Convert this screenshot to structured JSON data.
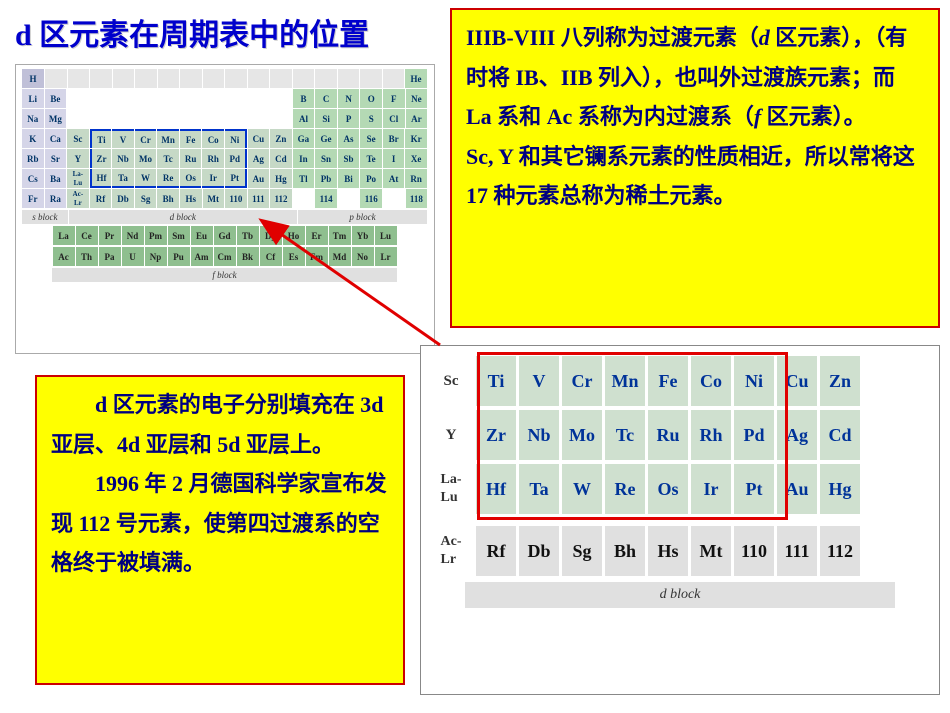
{
  "title": "d 区元素在周期表中的位置",
  "box_top_right": "IIIB-VIII 八列称为过渡元素（<span class=\"ital\">d</span> 区元素），（有时将 IB、IIB 列入），也叫外过渡族元素；而 La 系和 Ac 系称为内过渡系（<span class=\"ital\">f</span> 区元素）。<br>Sc, Y 和其它镧系元素的性质相近，所以常将这 17 种元素总称为稀土元素。",
  "box_bottom_left_p1": "　　d 区元素的电子分别填充在 3d 亚层、4d 亚层和 5d 亚层上。",
  "box_bottom_left_p2": "　　1996 年 2 月德国科学家宣布发现 112 号元素，使第四过渡系的空格终于被填满。",
  "colors": {
    "title_color": "#0000cc",
    "box_bg": "#ffff00",
    "box_border": "#cc0000",
    "text_color": "#000080",
    "d_block_border": "#0033cc",
    "big_red_border": "#e00000",
    "arrow_color": "#e00000",
    "s_block": "#d5d5e8",
    "p_block": "#b4d9b4",
    "d_block": "#c6d9c6",
    "f_block": "#8fbf8f"
  },
  "blocks": {
    "s": "s block",
    "d": "d block",
    "p": "p block",
    "f": "f block"
  },
  "small_table": {
    "r1": [
      "H",
      "",
      "",
      "",
      "",
      "",
      "",
      "",
      "",
      "",
      "",
      "",
      "",
      "",
      "",
      "",
      "",
      "He"
    ],
    "r2": [
      "Li",
      "Be",
      "",
      "",
      "",
      "",
      "",
      "",
      "",
      "",
      "",
      "",
      "B",
      "C",
      "N",
      "O",
      "F",
      "Ne"
    ],
    "r3": [
      "Na",
      "Mg",
      "",
      "",
      "",
      "",
      "",
      "",
      "",
      "",
      "",
      "",
      "Al",
      "Si",
      "P",
      "S",
      "Cl",
      "Ar"
    ],
    "r4": [
      "K",
      "Ca",
      "Sc",
      "Ti",
      "V",
      "Cr",
      "Mn",
      "Fe",
      "Co",
      "Ni",
      "Cu",
      "Zn",
      "Ga",
      "Ge",
      "As",
      "Se",
      "Br",
      "Kr"
    ],
    "r5": [
      "Rb",
      "Sr",
      "Y",
      "Zr",
      "Nb",
      "Mo",
      "Tc",
      "Ru",
      "Rh",
      "Pd",
      "Ag",
      "Cd",
      "In",
      "Sn",
      "Sb",
      "Te",
      "I",
      "Xe"
    ],
    "r6": [
      "Cs",
      "Ba",
      "La-Lu",
      "Hf",
      "Ta",
      "W",
      "Re",
      "Os",
      "Ir",
      "Pt",
      "Au",
      "Hg",
      "Tl",
      "Pb",
      "Bi",
      "Po",
      "At",
      "Rn"
    ],
    "r7": [
      "Fr",
      "Ra",
      "Ac-Lr",
      "Rf",
      "Db",
      "Sg",
      "Bh",
      "Hs",
      "Mt",
      "110",
      "111",
      "112",
      "",
      "114",
      "",
      "116",
      "",
      "118"
    ],
    "la": [
      "La",
      "Ce",
      "Pr",
      "Nd",
      "Pm",
      "Sm",
      "Eu",
      "Gd",
      "Tb",
      "Dy",
      "Ho",
      "Er",
      "Tm",
      "Yb",
      "Lu"
    ],
    "ac": [
      "Ac",
      "Th",
      "Pa",
      "U",
      "Np",
      "Pu",
      "Am",
      "Cm",
      "Bk",
      "Cf",
      "Es",
      "Fm",
      "Md",
      "No",
      "Lr"
    ]
  },
  "big_table": {
    "labels": [
      "Sc",
      "Y",
      "La-Lu",
      "Ac-Lr"
    ],
    "r1": [
      "Ti",
      "V",
      "Cr",
      "Mn",
      "Fe",
      "Co",
      "Ni",
      "Cu",
      "Zn"
    ],
    "r2": [
      "Zr",
      "Nb",
      "Mo",
      "Tc",
      "Ru",
      "Rh",
      "Pd",
      "Ag",
      "Cd"
    ],
    "r3": [
      "Hf",
      "Ta",
      "W",
      "Re",
      "Os",
      "Ir",
      "Pt",
      "Au",
      "Hg"
    ],
    "r4": [
      "Rf",
      "Db",
      "Sg",
      "Bh",
      "Hs",
      "Mt",
      "110",
      "111",
      "112"
    ],
    "d_block_label": "d block"
  }
}
